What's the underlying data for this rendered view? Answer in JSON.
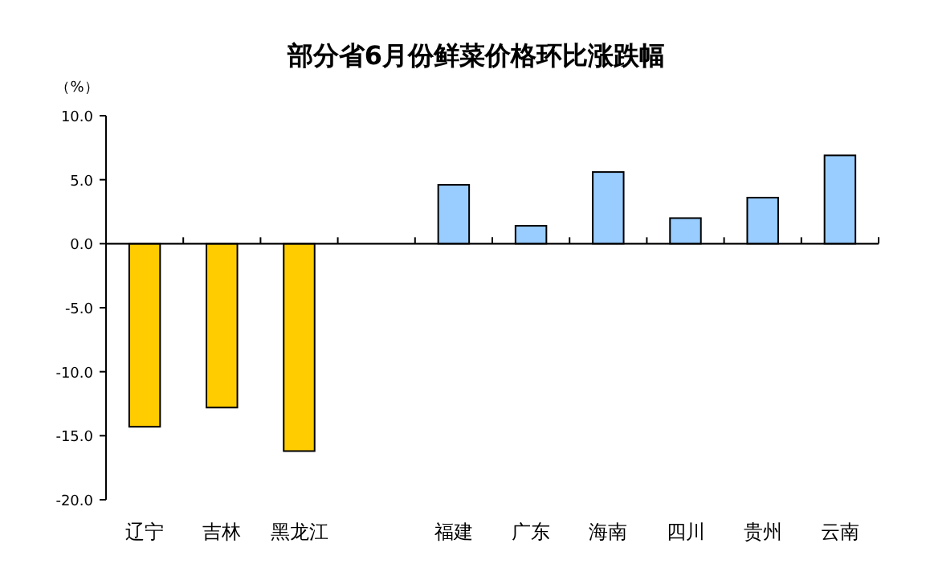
{
  "chart_data": {
    "type": "bar",
    "title": "部分省6月份鲜菜价格环比涨跌幅",
    "ylabel": "（%）",
    "categories": [
      "辽宁",
      "吉林",
      "黑龙江",
      null,
      "福建",
      "广东",
      "海南",
      "四川",
      "贵州",
      "云南"
    ],
    "values": [
      -14.3,
      -12.8,
      -16.2,
      null,
      4.6,
      1.4,
      5.6,
      2.0,
      3.6,
      6.9
    ],
    "colors": [
      "#ffcc00",
      "#ffcc00",
      "#ffcc00",
      null,
      "#99ccff",
      "#99ccff",
      "#99ccff",
      "#99ccff",
      "#99ccff",
      "#99ccff"
    ],
    "ylim": [
      -20,
      10
    ],
    "yticks": [
      {
        "value": -20,
        "label": "-20.0"
      },
      {
        "value": -15,
        "label": "-15.0"
      },
      {
        "value": -10,
        "label": "-10.0"
      },
      {
        "value": -5,
        "label": "-5.0"
      },
      {
        "value": 0,
        "label": "0.0"
      },
      {
        "value": 5,
        "label": "5.0"
      },
      {
        "value": 10,
        "label": "10.0"
      }
    ]
  }
}
